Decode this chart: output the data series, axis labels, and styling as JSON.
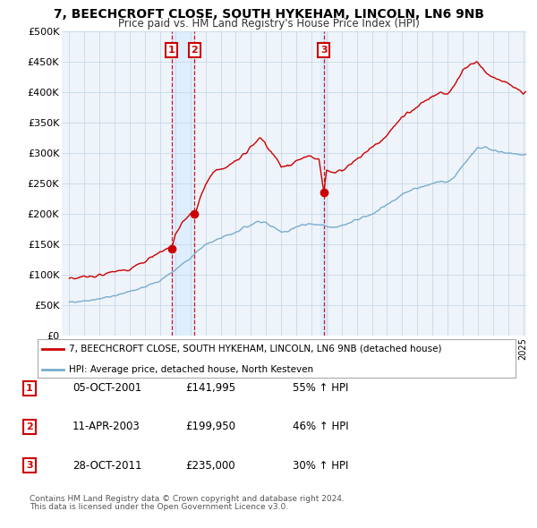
{
  "title": "7, BEECHCROFT CLOSE, SOUTH HYKEHAM, LINCOLN, LN6 9NB",
  "subtitle": "Price paid vs. HM Land Registry's House Price Index (HPI)",
  "legend_line1": "7, BEECHCROFT CLOSE, SOUTH HYKEHAM, LINCOLN, LN6 9NB (detached house)",
  "legend_line2": "HPI: Average price, detached house, North Kesteven",
  "footer1": "Contains HM Land Registry data © Crown copyright and database right 2024.",
  "footer2": "This data is licensed under the Open Government Licence v3.0.",
  "transactions": [
    {
      "label": "1",
      "date": "05-OCT-2001",
      "price": 141995,
      "hpi_pct": "55% ↑ HPI",
      "x": 2001.75
    },
    {
      "label": "2",
      "date": "11-APR-2003",
      "price": 199950,
      "hpi_pct": "46% ↑ HPI",
      "x": 2003.28
    },
    {
      "label": "3",
      "date": "28-OCT-2011",
      "price": 235000,
      "hpi_pct": "30% ↑ HPI",
      "x": 2011.82
    }
  ],
  "red_line_color": "#cc0000",
  "blue_line_color": "#7aadcc",
  "vline_color": "#cc0000",
  "highlight_bg": "#ddeeff",
  "plot_bg": "#eef4fa",
  "grid_color": "#c8d8e8",
  "background_color": "#ffffff",
  "ylim": [
    0,
    500000
  ],
  "xlim_start": 1994.5,
  "xlim_end": 2025.2,
  "yticks": [
    0,
    50000,
    100000,
    150000,
    200000,
    250000,
    300000,
    350000,
    400000,
    450000,
    500000
  ]
}
